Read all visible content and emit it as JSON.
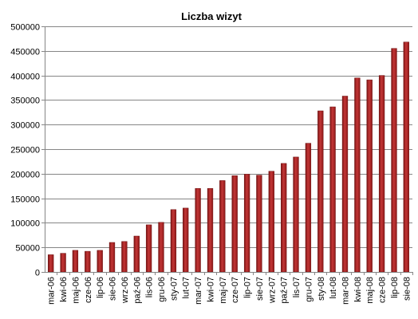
{
  "chart_data": {
    "type": "bar",
    "title": "Liczba wizyt",
    "xlabel": "",
    "ylabel": "",
    "ylim": [
      0,
      500000
    ],
    "yticks": [
      0,
      50000,
      100000,
      150000,
      200000,
      250000,
      300000,
      350000,
      400000,
      450000,
      500000
    ],
    "ytick_labels": [
      "0",
      "50000",
      "100000",
      "150000",
      "200000",
      "250000",
      "300000",
      "350000",
      "400000",
      "450000",
      "500000"
    ],
    "grid": true,
    "legend": "none",
    "bar_color": "#a32020",
    "categories": [
      "mar-06",
      "kwi-06",
      "maj-06",
      "cze-06",
      "lip-06",
      "sie-06",
      "wrz-06",
      "paź-06",
      "lis-06",
      "gru-06",
      "sty-07",
      "lut-07",
      "mar-07",
      "kwi-07",
      "maj-07",
      "cze-07",
      "lip-07",
      "sie-07",
      "wrz-07",
      "paź-07",
      "lis-07",
      "gru-07",
      "sty-08",
      "lut-08",
      "mar-08",
      "kwi-08",
      "maj-08",
      "cze-08",
      "lip-08",
      "sie-08"
    ],
    "values": [
      35000,
      38000,
      44000,
      42000,
      44000,
      60000,
      62000,
      73000,
      96000,
      101000,
      127000,
      130000,
      170000,
      170000,
      186000,
      196000,
      199000,
      197000,
      205000,
      221000,
      234000,
      262000,
      328000,
      336000,
      358000,
      395000,
      391000,
      400000,
      455000,
      468000
    ]
  }
}
